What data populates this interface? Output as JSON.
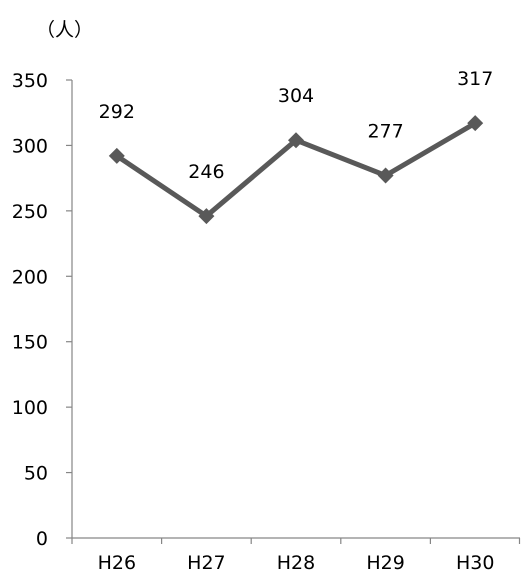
{
  "chart_data": {
    "type": "line",
    "title": "",
    "xlabel": "",
    "ylabel": "",
    "unit_label": "（人）",
    "categories": [
      "H26",
      "H27",
      "H28",
      "H29",
      "H30"
    ],
    "series": [
      {
        "values": [
          292,
          246,
          304,
          277,
          317
        ],
        "color": "#595959",
        "marker": "diamond"
      }
    ],
    "data_labels": [
      "292",
      "246",
      "304",
      "277",
      "317"
    ],
    "ylim": [
      0,
      350
    ],
    "yticks": [
      0,
      50,
      100,
      150,
      200,
      250,
      300,
      350
    ],
    "ytick_labels": [
      "0",
      "50",
      "100",
      "150",
      "200",
      "250",
      "300",
      "350"
    ],
    "grid": false,
    "legend": "none"
  }
}
